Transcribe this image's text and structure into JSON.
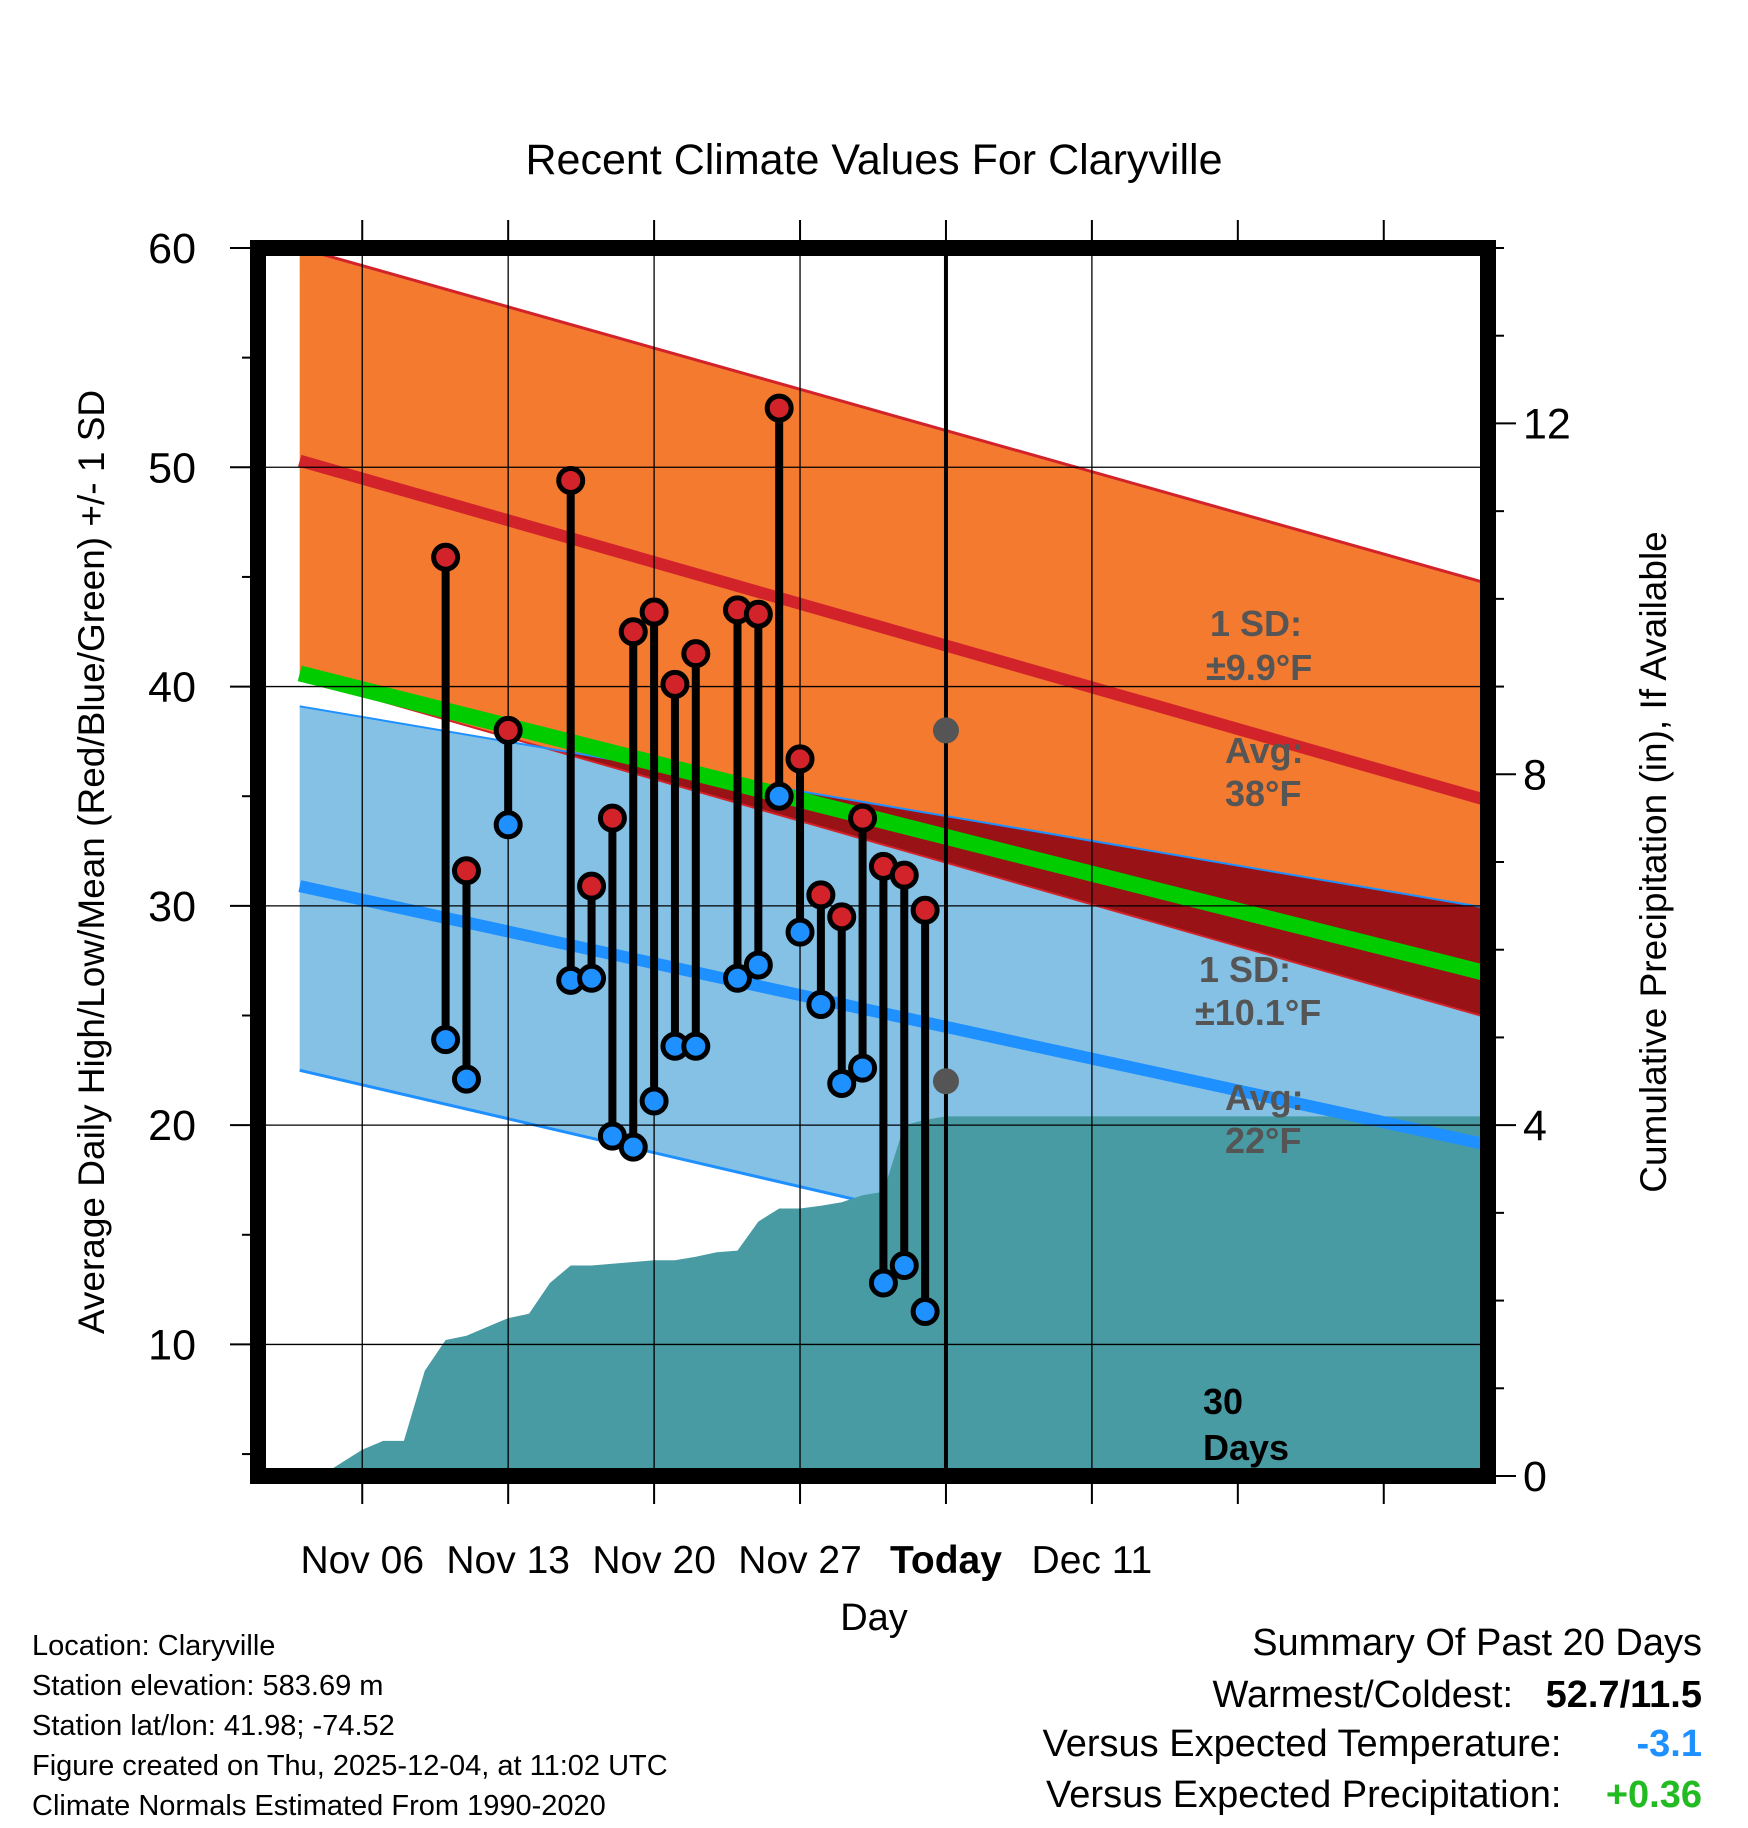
{
  "chart_data": {
    "type": "line",
    "title": "Recent Climate Values For Claryville",
    "xlabel": "Day",
    "ylabel": "Average Daily High/Low/Mean (Red/Blue/Green) +/- 1 SD",
    "ylabel_right": "Cumulative Precipitation (in), If Available",
    "x_domain_days": [
      -33,
      26
    ],
    "ylim": [
      4,
      60
    ],
    "ylim_right": [
      0,
      14
    ],
    "x_ticks": [
      {
        "day": -28,
        "label": "Nov 06"
      },
      {
        "day": -21,
        "label": "Nov 13"
      },
      {
        "day": -14,
        "label": "Nov 20"
      },
      {
        "day": -7,
        "label": "Nov 27"
      },
      {
        "day": 0,
        "label": "Today"
      },
      {
        "day": 7,
        "label": "Dec 11"
      }
    ],
    "y_ticks": [
      "10",
      "20",
      "30",
      "40",
      "50",
      "60"
    ],
    "y_ticks_right": [
      "0",
      "4",
      "8",
      "12"
    ],
    "normals": {
      "days": [
        -31,
        26
      ],
      "high_avg": [
        50.3,
        34.8
      ],
      "high_upper": [
        60.0,
        44.7
      ],
      "high_lower": [
        40.4,
        24.9
      ],
      "mean_avg": [
        40.6,
        26.9
      ],
      "low_avg": [
        30.9,
        19.1
      ],
      "low_upper": [
        39.1,
        29.9
      ],
      "low_lower": [
        22.5,
        9.9
      ]
    },
    "observed": {
      "days": [
        -24,
        -23,
        -21,
        -18,
        -17,
        -16,
        -15,
        -14,
        -13,
        -12,
        -10,
        -9,
        -8,
        -7,
        -6,
        -5,
        -4,
        -3,
        -2,
        -1
      ],
      "highs": [
        45.9,
        31.6,
        38.0,
        49.4,
        30.9,
        34.0,
        42.5,
        43.4,
        40.1,
        41.5,
        43.5,
        43.3,
        52.7,
        36.7,
        30.5,
        29.5,
        34.0,
        31.8,
        31.4,
        29.8
      ],
      "lows": [
        23.9,
        22.1,
        33.7,
        26.6,
        26.7,
        19.5,
        19.0,
        21.1,
        23.6,
        23.6,
        26.7,
        27.3,
        35.0,
        28.8,
        25.5,
        21.9,
        22.6,
        12.8,
        13.6,
        11.5
      ]
    },
    "precip": {
      "days": [
        -30,
        -28,
        -27,
        -26,
        -25,
        -24,
        -23,
        -22,
        -21,
        -20,
        -19,
        -18,
        -17,
        -16,
        -15,
        -14,
        -13,
        -12,
        -11,
        -10,
        -9,
        -8,
        -7,
        -6,
        -5,
        -4,
        -3,
        -2,
        -1,
        0
      ],
      "cumulative": [
        0.0,
        0.3,
        0.4,
        0.4,
        1.2,
        1.55,
        1.6,
        1.7,
        1.8,
        1.85,
        2.2,
        2.4,
        2.4,
        2.42,
        2.44,
        2.46,
        2.46,
        2.5,
        2.55,
        2.57,
        2.9,
        3.05,
        3.05,
        3.08,
        3.12,
        3.2,
        3.24,
        4.0,
        4.06,
        4.1
      ]
    },
    "annotations": {
      "high_sd_label": "1 SD:",
      "high_sd_value": "±9.9°F",
      "high_avg_label": "Avg:",
      "high_avg_value": "38°F",
      "high_avg_point": 38,
      "low_sd_label": "1 SD:",
      "low_sd_value": "±10.1°F",
      "low_avg_label": "Avg:",
      "low_avg_value": "22°F",
      "low_avg_point": 22,
      "days_line_1": "30",
      "days_line_2": "Days"
    },
    "colors": {
      "high_band": "#f47a30",
      "high_line": "#d2232a",
      "overlap_band": "#981216",
      "low_band": "#85c1e5",
      "low_line": "#1e90ff",
      "mean_line": "#00cc00",
      "precip": "#499ba3",
      "marker_high": "#d2232a",
      "marker_low": "#1e90ff",
      "annotation": "#555555"
    }
  },
  "meta": {
    "location": "Location: Claryville",
    "elevation": "Station elevation: 583.69 m",
    "latlon": "Station lat/lon: 41.98; -74.52",
    "created": "Figure created on Thu, 2025-12-04, at 11:02 UTC",
    "normals": "Climate Normals Estimated From 1990-2020"
  },
  "summary": {
    "title": "Summary Of Past 20 Days",
    "warm_cold_label": "Warmest/Coldest:",
    "warm_cold_value": "52.7/11.5",
    "temp_label": "Versus Expected Temperature:",
    "temp_value": "-3.1",
    "temp_color": "#1e90ff",
    "precip_label": "Versus Expected Precipitation:",
    "precip_value": "+0.36",
    "precip_color": "#22bb22"
  }
}
